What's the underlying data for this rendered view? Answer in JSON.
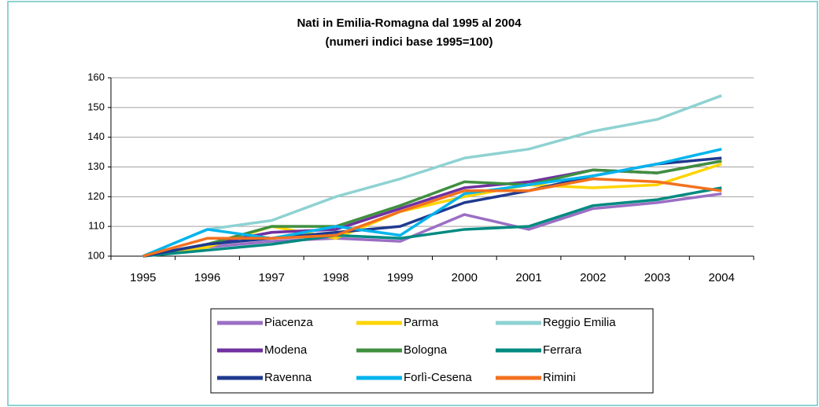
{
  "chart_data": {
    "type": "line",
    "title": "Nati in Emilia-Romagna dal 1995 al 2004",
    "subtitle": "(numeri indici base 1995=100)",
    "categories": [
      "1995",
      "1996",
      "1997",
      "1998",
      "1999",
      "2000",
      "2001",
      "2002",
      "2003",
      "2004"
    ],
    "ylim": [
      100,
      160
    ],
    "yticks": [
      100,
      110,
      120,
      130,
      140,
      150,
      160
    ],
    "grid": true,
    "series": [
      {
        "name": "Piacenza",
        "color": "#9b6fc4",
        "values": [
          100,
          103,
          105,
          106,
          105,
          114,
          109,
          116,
          118,
          121
        ]
      },
      {
        "name": "Parma",
        "color": "#ffd400",
        "values": [
          100,
          103,
          110,
          106,
          115,
          120,
          124,
          123,
          124,
          131
        ]
      },
      {
        "name": "Reggio Emilia",
        "color": "#8fd2d2",
        "values": [
          100,
          109,
          112,
          120,
          126,
          133,
          136,
          142,
          146,
          154
        ]
      },
      {
        "name": "Modena",
        "color": "#7030a0",
        "values": [
          100,
          104,
          108,
          109,
          116,
          123,
          125,
          129,
          128,
          132
        ]
      },
      {
        "name": "Bologna",
        "color": "#3f8f3f",
        "values": [
          100,
          104,
          110,
          110,
          117,
          125,
          124,
          129,
          128,
          132
        ]
      },
      {
        "name": "Ferrara",
        "color": "#008a80",
        "values": [
          100,
          102,
          104,
          107,
          106,
          109,
          110,
          117,
          119,
          123
        ]
      },
      {
        "name": "Ravenna",
        "color": "#1f3a8f",
        "values": [
          100,
          104,
          106,
          108,
          110,
          118,
          122,
          127,
          131,
          133
        ]
      },
      {
        "name": "Forlì-Cesena",
        "color": "#00b4ec",
        "values": [
          100,
          109,
          106,
          110,
          107,
          121,
          124,
          127,
          131,
          136
        ]
      },
      {
        "name": "Rimini",
        "color": "#f2711f",
        "values": [
          100,
          106,
          106,
          107,
          115,
          122,
          122,
          126,
          125,
          122
        ]
      }
    ]
  }
}
